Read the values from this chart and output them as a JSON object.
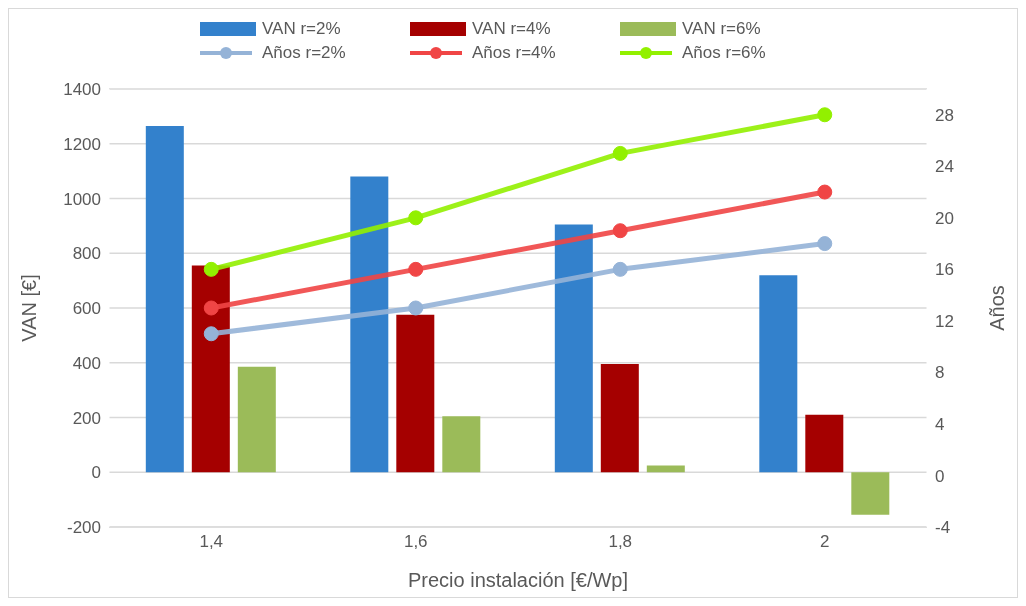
{
  "chart_data": {
    "type": "bar",
    "xlabel": "Precio instalación [€/Wp]",
    "ylabel": "VAN [€]",
    "y2label": "Años",
    "categories": [
      "1,4",
      "1,6",
      "1,8",
      "2"
    ],
    "series": [
      {
        "name": "VAN r=2%",
        "color": "#3381cc",
        "values": [
          1265,
          1080,
          905,
          720
        ]
      },
      {
        "name": "VAN r=4%",
        "color": "#a50000",
        "values": [
          755,
          575,
          395,
          210
        ]
      },
      {
        "name": "VAN r=6%",
        "color": "#9bbb59",
        "values": [
          385,
          205,
          25,
          -155
        ]
      },
      {
        "name": "Años r=2%",
        "type": "line",
        "axis": "y2",
        "color": "#95b3d7",
        "values": [
          11,
          13,
          16,
          18
        ]
      },
      {
        "name": "Años r=4%",
        "type": "line",
        "axis": "y2",
        "color": "#f04545",
        "values": [
          13,
          16,
          19,
          22
        ]
      },
      {
        "name": "Años r=6%",
        "type": "line",
        "axis": "y2",
        "color": "#92f000",
        "values": [
          16,
          20,
          25,
          28
        ]
      }
    ],
    "ylim": [
      -200,
      1400
    ],
    "yticks": [
      -200,
      0,
      200,
      400,
      600,
      800,
      1000,
      1200,
      1400
    ],
    "y2lim": [
      -4,
      30
    ],
    "y2ticks": [
      -4,
      0,
      4,
      8,
      12,
      16,
      20,
      24,
      28
    ],
    "grid": "y",
    "legend": "top",
    "marker": "circle",
    "line_style": "solid"
  }
}
